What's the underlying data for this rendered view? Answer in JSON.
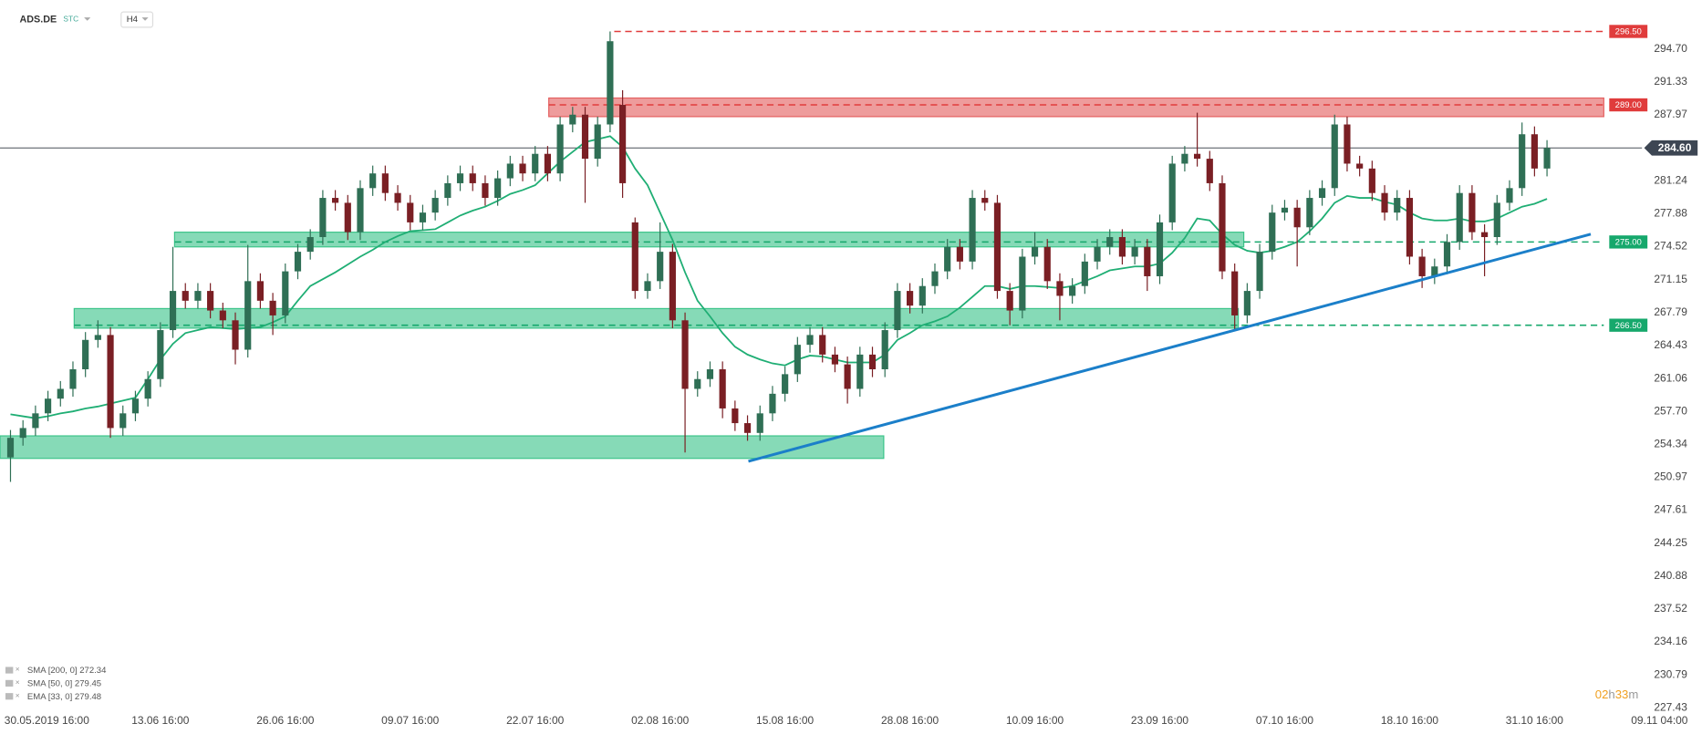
{
  "chart_data": {
    "type": "candlestick",
    "header": {
      "symbol": "ADS.DE",
      "tag": "STC",
      "interval": "H4"
    },
    "categories": [
      "30.05.2019 16:00",
      null,
      null,
      null,
      null,
      null,
      null,
      null,
      null,
      null,
      null,
      null,
      "13.06 16:00",
      null,
      null,
      null,
      null,
      null,
      null,
      null,
      null,
      null,
      "26.06 16:00",
      null,
      null,
      null,
      null,
      null,
      null,
      null,
      null,
      null,
      "09.07 16:00",
      null,
      null,
      null,
      null,
      null,
      null,
      null,
      null,
      null,
      "22.07 16:00",
      null,
      null,
      null,
      null,
      null,
      null,
      null,
      null,
      null,
      "02.08 16:00",
      null,
      null,
      null,
      null,
      null,
      null,
      null,
      null,
      null,
      "15.08 16:00",
      null,
      null,
      null,
      null,
      null,
      null,
      null,
      null,
      null,
      "28.08 16:00",
      null,
      null,
      null,
      null,
      null,
      null,
      null,
      null,
      null,
      "10.09 16:00",
      null,
      null,
      null,
      null,
      null,
      null,
      null,
      null,
      null,
      "23.09 16:00",
      null,
      null,
      null,
      null,
      null,
      null,
      null,
      null,
      null,
      "07.10 16:00",
      null,
      null,
      null,
      null,
      null,
      null,
      null,
      null,
      null,
      "18.10 16:00",
      null,
      null,
      null,
      null,
      null,
      null,
      null,
      null,
      null,
      "31.10 16:00",
      null,
      null,
      null,
      null,
      null,
      null,
      null,
      null,
      null,
      "09.11 04:00"
    ],
    "open": [
      253,
      255,
      256,
      257.5,
      259,
      260,
      262,
      265,
      265.5,
      256,
      257.5,
      259,
      261,
      266,
      270,
      269,
      270,
      268,
      267,
      264,
      271,
      269,
      267.5,
      272,
      274,
      275.5,
      279.5,
      279,
      276,
      280.5,
      282,
      280,
      279,
      277,
      278,
      279.5,
      281,
      282,
      281,
      279.5,
      281.5,
      283,
      282,
      284,
      282,
      287,
      288,
      283.5,
      287,
      289,
      277,
      270,
      271,
      274,
      267,
      260,
      261,
      262,
      258,
      256.5,
      255.5,
      257.5,
      259.5,
      261.5,
      264.5,
      265.5,
      263.5,
      262.5,
      260,
      263.5,
      262,
      266,
      270,
      268.5,
      270.5,
      272,
      274.5,
      273,
      279.5,
      279,
      270,
      268,
      273.5,
      274.5,
      271,
      269.5,
      270.5,
      273,
      274.5,
      275.5,
      273.5,
      274.5,
      271.5,
      277,
      283,
      284,
      283.5,
      281,
      272,
      267.5,
      270,
      274,
      278,
      278.5,
      276.5,
      279.5,
      280.5,
      287,
      283,
      282.5,
      280,
      278,
      279.5,
      273.5,
      271.5,
      272.5,
      275,
      280,
      276,
      275.5,
      279,
      280.5,
      286,
      282.5,
      null,
      null,
      null,
      null,
      null,
      null,
      null,
      null,
      null
    ],
    "high": [
      255.8,
      256.8,
      258.3,
      259.8,
      260.8,
      262.8,
      265.8,
      267,
      266.3,
      258.3,
      259.8,
      261.8,
      266.8,
      274.5,
      270.8,
      270.8,
      270.8,
      268.8,
      267.8,
      274.7,
      271.8,
      269.8,
      272.8,
      274.8,
      276.3,
      280.3,
      280.3,
      279.8,
      281.3,
      282.8,
      282.8,
      280.8,
      279.8,
      278.8,
      280.3,
      281.8,
      282.8,
      282.8,
      281.8,
      282.3,
      283.8,
      283.8,
      284.8,
      284.8,
      287.8,
      288.8,
      288.8,
      287.8,
      296.5,
      290.5,
      277.5,
      271.8,
      277,
      274.8,
      267.8,
      261.8,
      262.8,
      262.8,
      258.8,
      257.3,
      258.3,
      260.3,
      262.3,
      265.3,
      266.3,
      266.3,
      264.3,
      263.3,
      264.3,
      264.3,
      266.8,
      270.8,
      270.8,
      271.3,
      272.8,
      275.3,
      275.3,
      280.3,
      280.3,
      279.8,
      270.8,
      274.3,
      276,
      275.3,
      271.8,
      271.3,
      273.8,
      275.3,
      276.3,
      276.3,
      275.3,
      275.3,
      277.8,
      283.8,
      284.8,
      288.2,
      284.3,
      281.8,
      272.8,
      270.8,
      274.8,
      278.8,
      279.3,
      279.3,
      280.3,
      281.3,
      288,
      287.8,
      283.8,
      283.3,
      280.8,
      280.3,
      280.3,
      274.3,
      273.3,
      275.8,
      280.8,
      280.8,
      276.8,
      279.8,
      281.3,
      287.2,
      286.8,
      285.4,
      null,
      null,
      null,
      null,
      null,
      null,
      null,
      null,
      null
    ],
    "low": [
      250.5,
      254.2,
      255.2,
      256.7,
      258.2,
      259.2,
      261.2,
      264.2,
      255,
      255.2,
      256.7,
      258.2,
      260.2,
      265.2,
      268.2,
      268.2,
      267.2,
      266.2,
      262.5,
      263.2,
      268.2,
      265.5,
      266.7,
      271.2,
      273.2,
      274.7,
      278.2,
      275.2,
      275.2,
      279.7,
      279.2,
      278.2,
      276.2,
      276.2,
      277.2,
      278.7,
      280.2,
      280.2,
      278.7,
      278.7,
      280.7,
      281.2,
      281.2,
      281.2,
      281.2,
      286.2,
      279,
      282.7,
      286.2,
      279.5,
      269.2,
      269.2,
      270.2,
      266.2,
      253.5,
      259.2,
      260.2,
      257,
      255.7,
      254.7,
      254.7,
      256.7,
      258.7,
      260.7,
      263.7,
      262.7,
      261.7,
      258.5,
      259.2,
      261.2,
      261.2,
      265.2,
      267.7,
      267.7,
      269.7,
      271.2,
      272.2,
      272.2,
      278.2,
      269.2,
      266.5,
      267.2,
      272.7,
      270.2,
      267,
      268.7,
      269.7,
      272.2,
      273.7,
      272.7,
      272.7,
      270,
      270.7,
      276.2,
      282.2,
      282.7,
      280.2,
      271.2,
      266,
      266.7,
      269.2,
      273.2,
      277.2,
      272.5,
      275.7,
      278.7,
      279.7,
      282.2,
      281.7,
      279.2,
      277.2,
      277.2,
      272.7,
      270.3,
      270.7,
      271.7,
      274.2,
      275.2,
      271.5,
      274.7,
      278.2,
      279.7,
      281.7,
      281.7,
      null,
      null,
      null,
      null,
      null,
      null,
      null,
      null,
      null
    ],
    "close": [
      255,
      256,
      257.5,
      259,
      260,
      262,
      265,
      265.5,
      256,
      257.5,
      259,
      261,
      266,
      270,
      269,
      270,
      268,
      267,
      264,
      271,
      269,
      267.5,
      272,
      274,
      275.5,
      279.5,
      279,
      276,
      280.5,
      282,
      280,
      279,
      277,
      278,
      279.5,
      281,
      282,
      281,
      279.5,
      281.5,
      283,
      282,
      284,
      282,
      287,
      288,
      283.5,
      287,
      295.5,
      281,
      270,
      271,
      274,
      267,
      260,
      261,
      262,
      258,
      256.5,
      255.5,
      257.5,
      259.5,
      261.5,
      264.5,
      265.5,
      263.5,
      262.5,
      260,
      263.5,
      262,
      266,
      270,
      268.5,
      270.5,
      272,
      274.5,
      273,
      279.5,
      279,
      270,
      268,
      273.5,
      274.5,
      271,
      269.5,
      270.5,
      273,
      274.5,
      275.5,
      273.5,
      274.5,
      271.5,
      277,
      283,
      284,
      283.5,
      281,
      272,
      267.5,
      270,
      274,
      278,
      278.5,
      276.5,
      279.5,
      280.5,
      287,
      283,
      282.5,
      280,
      278,
      279.5,
      273.5,
      271.5,
      272.5,
      275,
      280,
      276,
      275.5,
      279,
      280.5,
      286,
      282.5,
      284.6,
      null,
      null,
      null,
      null,
      null,
      null,
      null,
      null,
      null
    ],
    "up_color": "#2f6f55",
    "down_color": "#7a1f24",
    "moving_average": {
      "color": "#1fae74",
      "values": [
        257.4,
        257.2,
        257,
        257.2,
        257.5,
        257.7,
        258,
        258.2,
        258.5,
        258.8,
        259.1,
        261,
        263,
        264.6,
        265.7,
        266,
        266.3,
        266.2,
        266.1,
        266.2,
        266.3,
        266.8,
        267.4,
        269,
        270.5,
        271.2,
        271.9,
        272.7,
        273.5,
        274.2,
        275,
        275.6,
        276.1,
        276.2,
        276.3,
        277,
        277.7,
        278.2,
        278.6,
        279.2,
        279.9,
        280.3,
        280.8,
        282,
        283.2,
        284.2,
        285.2,
        285.5,
        285.8,
        284.7,
        282.5,
        280.8,
        278,
        275.2,
        271.9,
        269,
        267.4,
        265.7,
        264.3,
        263.5,
        263,
        262.6,
        262.4,
        263,
        263.4,
        263.3,
        263,
        262.7,
        262.7,
        262.7,
        263.5,
        265,
        265.7,
        266.5,
        266.9,
        267.4,
        268.3,
        269.4,
        270.5,
        270.5,
        270.2,
        270.5,
        270.5,
        270.4,
        270.3,
        270.5,
        271,
        271.5,
        272.1,
        272.3,
        272.5,
        272.5,
        272.8,
        273.9,
        275.4,
        277.4,
        277.2,
        275.8,
        274.7,
        274.1,
        273.9,
        274.1,
        274.5,
        275,
        276.1,
        277.4,
        279,
        279.7,
        279.5,
        279.5,
        279.1,
        278.8,
        278,
        277.4,
        277.2,
        277.2,
        277.4,
        277.1,
        277.1,
        277.4,
        278,
        278.6,
        278.9,
        279.4,
        null,
        null,
        null,
        null,
        null,
        null,
        null,
        null,
        null
      ]
    },
    "zones": [
      {
        "color": "#e46060",
        "top": 289.7,
        "bottom": 287.8
      },
      {
        "color": "#3cc48a",
        "top": 276.0,
        "bottom": 274.5
      },
      {
        "color": "#3cc48a",
        "top": 268.2,
        "bottom": 266.2
      },
      {
        "color": "#3cc48a",
        "top": 255.2,
        "bottom": 252.9
      }
    ],
    "levels": [
      {
        "value": 296.5,
        "label": "296.50",
        "color": "#e03c3c"
      },
      {
        "value": 289,
        "label": "289.00",
        "color": "#e03c3c"
      },
      {
        "value": 275,
        "label": "275.00",
        "color": "#16a86c"
      },
      {
        "value": 266.5,
        "label": "266.50",
        "color": "#16a86c"
      }
    ],
    "trendline": {
      "color": "#1b7fc9",
      "start": 252.6,
      "end": 275.8
    },
    "last_price": {
      "value": 284.6,
      "label": "284.60"
    },
    "ylim": [
      226.76,
      299.71
    ],
    "yticks": [
      {
        "value": 294.7,
        "label": "294.70"
      },
      291.33,
      287.97,
      281.24,
      277.88,
      274.52,
      271.15,
      267.79,
      264.43,
      261.06,
      {
        "value": 257.7,
        "label": "257.70"
      },
      254.34,
      250.97,
      247.61,
      244.25,
      240.88,
      237.52,
      234.16,
      230.79,
      227.43
    ],
    "indicators": [
      "SMA [200, 0] 272.34",
      "SMA [50, 0] 279.45",
      "EMA [33, 0] 279.48"
    ],
    "timer": {
      "hours": "02",
      "h": "h",
      "minutes": "33",
      "m": "m"
    }
  }
}
